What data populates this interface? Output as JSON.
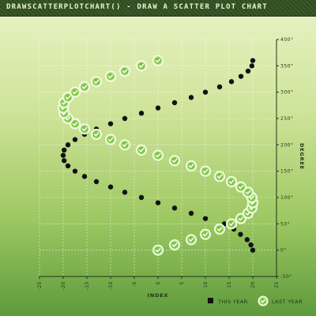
{
  "title": "drawScatterPlotChart() - Draw a scatter plot chart",
  "chart_data": {
    "type": "scatter",
    "title": "drawScatterPlotChart() - Draw a scatter plot chart",
    "xlabel": "INDEX",
    "ylabel": "DEGREE",
    "xlim": [
      -25,
      25
    ],
    "ylim": [
      -50,
      400
    ],
    "x_ticks": [
      "-25",
      "-20",
      "-15",
      "-10",
      "-5",
      "0",
      "5",
      "10",
      "15",
      "20",
      "25"
    ],
    "y_ticks": [
      "-50°",
      "0°",
      "50°",
      "100°",
      "150°",
      "200°",
      "250°",
      "300°",
      "350°",
      "400°"
    ],
    "grid": true,
    "legend_position": "bottom-right",
    "series": [
      {
        "name": "THIS YEAR",
        "color": "#111111",
        "marker": "black-dot",
        "points": [
          [
            20,
            0
          ],
          [
            19.6,
            10
          ],
          [
            18.8,
            20
          ],
          [
            17.4,
            30
          ],
          [
            16,
            40
          ],
          [
            14,
            50
          ],
          [
            10,
            60
          ],
          [
            7,
            70
          ],
          [
            3.5,
            80
          ],
          [
            0,
            90
          ],
          [
            -3.5,
            100
          ],
          [
            -7,
            110
          ],
          [
            -10,
            120
          ],
          [
            -13,
            130
          ],
          [
            -15.5,
            140
          ],
          [
            -17.5,
            150
          ],
          [
            -19,
            160
          ],
          [
            -19.8,
            170
          ],
          [
            -20,
            180
          ],
          [
            -19.8,
            190
          ],
          [
            -19,
            200
          ],
          [
            -17.5,
            210
          ],
          [
            -15.5,
            220
          ],
          [
            -13,
            230
          ],
          [
            -10,
            240
          ],
          [
            -7,
            250
          ],
          [
            -3.5,
            260
          ],
          [
            0,
            270
          ],
          [
            3.5,
            280
          ],
          [
            7,
            290
          ],
          [
            10,
            300
          ],
          [
            13,
            310
          ],
          [
            15.5,
            320
          ],
          [
            17.5,
            330
          ],
          [
            19,
            340
          ],
          [
            19.8,
            350
          ],
          [
            20,
            360
          ]
        ]
      },
      {
        "name": "LAST YEAR",
        "color": "#8fd14f",
        "marker": "check-icon",
        "points": [
          [
            0,
            0
          ],
          [
            3.5,
            10
          ],
          [
            7,
            20
          ],
          [
            10,
            30
          ],
          [
            13,
            40
          ],
          [
            15.5,
            50
          ],
          [
            17.5,
            60
          ],
          [
            19,
            70
          ],
          [
            19.8,
            80
          ],
          [
            20,
            90
          ],
          [
            19.8,
            100
          ],
          [
            19,
            110
          ],
          [
            17.5,
            120
          ],
          [
            15.5,
            130
          ],
          [
            13,
            140
          ],
          [
            10,
            150
          ],
          [
            7,
            160
          ],
          [
            3.5,
            170
          ],
          [
            0,
            180
          ],
          [
            -3.5,
            190
          ],
          [
            -7,
            200
          ],
          [
            -10,
            210
          ],
          [
            -13,
            220
          ],
          [
            -15.5,
            230
          ],
          [
            -17.5,
            240
          ],
          [
            -19,
            250
          ],
          [
            -19.8,
            260
          ],
          [
            -20,
            270
          ],
          [
            -19.8,
            280
          ],
          [
            -19,
            290
          ],
          [
            -17.5,
            300
          ],
          [
            -15.5,
            310
          ],
          [
            -13,
            320
          ],
          [
            -10,
            330
          ],
          [
            -7,
            340
          ],
          [
            -3.5,
            350
          ],
          [
            0,
            360
          ]
        ]
      }
    ]
  }
}
